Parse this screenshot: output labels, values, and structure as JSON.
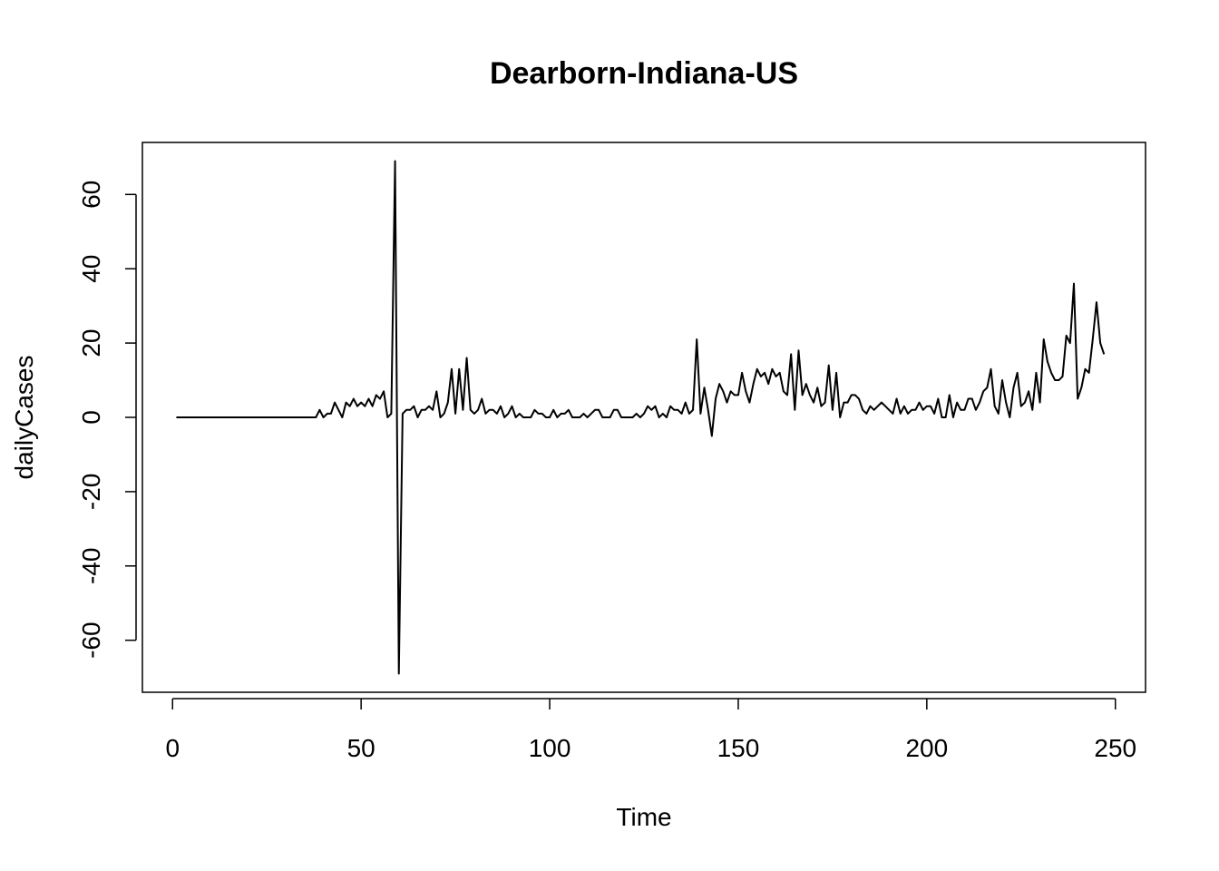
{
  "chart_data": {
    "type": "line",
    "title": "Dearborn-Indiana-US",
    "xlabel": "Time",
    "ylabel": "dailyCases",
    "xlim": [
      -8,
      258
    ],
    "ylim": [
      -74,
      74
    ],
    "x_ticks": [
      0,
      50,
      100,
      150,
      200,
      250
    ],
    "y_ticks": [
      -60,
      -40,
      -20,
      0,
      20,
      40,
      60
    ],
    "grid": false,
    "series": [
      {
        "x_start": 1,
        "values": [
          0,
          0,
          0,
          0,
          0,
          0,
          0,
          0,
          0,
          0,
          0,
          0,
          0,
          0,
          0,
          0,
          0,
          0,
          0,
          0,
          0,
          0,
          0,
          0,
          0,
          0,
          0,
          0,
          0,
          0,
          0,
          0,
          0,
          0,
          0,
          0,
          0,
          0,
          2,
          0,
          1,
          1,
          4,
          2,
          0,
          4,
          3,
          5,
          3,
          4,
          3,
          5,
          3,
          6,
          5,
          7,
          0,
          1,
          69,
          -69,
          1,
          2,
          2,
          3,
          0,
          2,
          2,
          3,
          2,
          7,
          0,
          1,
          4,
          13,
          1,
          13,
          2,
          16,
          2,
          1,
          2,
          5,
          1,
          2,
          2,
          1,
          3,
          0,
          1,
          3,
          0,
          1,
          0,
          0,
          0,
          2,
          1,
          1,
          0,
          0,
          2,
          0,
          1,
          1,
          2,
          0,
          0,
          0,
          1,
          0,
          1,
          2,
          2,
          0,
          0,
          0,
          2,
          2,
          0,
          0,
          0,
          0,
          1,
          0,
          1,
          3,
          2,
          3,
          0,
          1,
          0,
          3,
          2,
          2,
          1,
          4,
          1,
          2,
          21,
          1,
          8,
          2,
          -5,
          5,
          9,
          7,
          4,
          7,
          6,
          6,
          12,
          7,
          4,
          9,
          13,
          11,
          12,
          9,
          13,
          11,
          12,
          7,
          6,
          17,
          2,
          18,
          6,
          9,
          6,
          4,
          8,
          3,
          4,
          14,
          2,
          12,
          0,
          4,
          4,
          6,
          6,
          5,
          2,
          1,
          3,
          2,
          3,
          4,
          3,
          2,
          1,
          5,
          1,
          3,
          1,
          2,
          2,
          4,
          2,
          3,
          3,
          1,
          5,
          0,
          0,
          6,
          0,
          4,
          2,
          2,
          5,
          5,
          2,
          4,
          7,
          8,
          13,
          3,
          1,
          10,
          4,
          0,
          8,
          12,
          3,
          4,
          7,
          2,
          12,
          4,
          21,
          15,
          12,
          10,
          10,
          11,
          22,
          20,
          36,
          5,
          8,
          13,
          12,
          21,
          31,
          20,
          17
        ]
      }
    ]
  }
}
